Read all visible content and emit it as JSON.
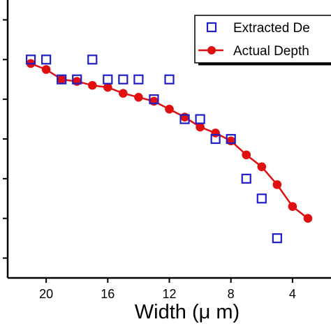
{
  "chart_data": {
    "type": "scatter",
    "xlabel": "Width (μ m)",
    "ylabel": "",
    "title": "",
    "x_axis": {
      "reversed": true,
      "range": [
        22.5,
        1.5
      ],
      "ticks": [
        20,
        16,
        12,
        8,
        4
      ],
      "tick_labels": [
        "20",
        "16",
        "12",
        "8",
        "4"
      ]
    },
    "y_axis": {
      "range": [
        0,
        14
      ],
      "tick_positions": [
        1,
        3,
        5,
        7,
        9,
        11,
        13
      ],
      "tick_labels_visible": false
    },
    "legend": {
      "position": "top-right",
      "entries": [
        "Extracted De",
        "Actual Depth"
      ]
    },
    "series": [
      {
        "name": "Extracted De",
        "marker": "open-square",
        "color": "#1f1fc8",
        "x": [
          21,
          20,
          19,
          18,
          17,
          16,
          15,
          14,
          13,
          12,
          11,
          10,
          9,
          8,
          7,
          6,
          5
        ],
        "y": [
          11.0,
          11.0,
          10.0,
          10.0,
          11.0,
          10.0,
          10.0,
          10.0,
          9.0,
          10.0,
          8.0,
          8.0,
          7.0,
          7.0,
          5.0,
          4.0,
          2.0
        ]
      },
      {
        "name": "Actual Depth",
        "marker": "filled-circle-line",
        "color": "#e01010",
        "x": [
          21,
          20,
          19,
          18,
          17,
          16,
          15,
          14,
          13,
          12,
          11,
          10,
          9,
          8,
          7,
          6,
          5,
          4,
          3
        ],
        "y": [
          10.8,
          10.5,
          10.0,
          9.9,
          9.7,
          9.6,
          9.3,
          9.1,
          8.9,
          8.5,
          8.1,
          7.6,
          7.3,
          6.9,
          6.2,
          5.6,
          4.7,
          3.6,
          3.0
        ]
      }
    ]
  }
}
